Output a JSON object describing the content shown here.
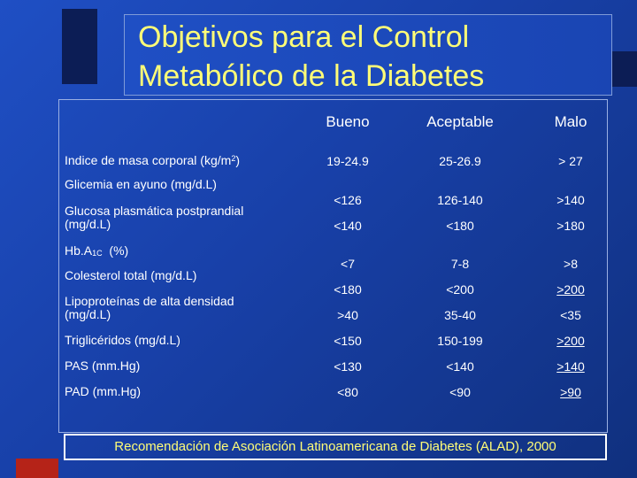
{
  "title": {
    "line1": "Objetivos para el Control",
    "line2": "Metabólico de la Diabetes"
  },
  "table": {
    "columns": [
      "Bueno",
      "Aceptable",
      "Malo"
    ],
    "rows": [
      {
        "label_main": "Indice de masa corporal (kg/m",
        "label_sup": "2",
        "label_tail": ")",
        "bueno": "19-24.9",
        "aceptable": "25-26.9",
        "malo": "> 27"
      },
      {
        "label_main": "Glicemia en ayuno (mg/d.L)",
        "bueno": "<126",
        "aceptable": "126-140",
        "malo": ">140"
      },
      {
        "label_line1": "Glucosa plasmática postprandial",
        "label_line2": "(mg/d.L)",
        "bueno": "<140",
        "aceptable": "<180",
        "malo": ">180"
      },
      {
        "label_main": "Hb.A",
        "label_sub": "1C",
        "label_tail": "  (%)",
        "bueno": "<7",
        "aceptable": "7-8",
        "malo": ">8"
      },
      {
        "label_main": "Colesterol total (mg/d.L)",
        "bueno": "<180",
        "aceptable": "<200",
        "malo": ">200"
      },
      {
        "label_line1": "Lipoproteínas de alta densidad",
        "label_line2": "(mg/d.L)",
        "bueno": ">40",
        "aceptable": "35-40",
        "malo": "<35"
      },
      {
        "label_main": "Triglicéridos (mg/d.L)",
        "bueno": "<150",
        "aceptable": "150-199",
        "malo": ">200"
      },
      {
        "label_main": "PAS (mm.Hg)",
        "bueno": "<130",
        "aceptable": "<140",
        "malo": ">140"
      },
      {
        "label_main": "PAD (mm.Hg)",
        "bueno": "<80",
        "aceptable": "<90",
        "malo": ">90"
      }
    ]
  },
  "footnote": "Recomendación de Asociación Latinoamericana de Diabetes (ALAD), 2000",
  "colors": {
    "title": "#fffd77",
    "text": "#ffffff",
    "background": "#1f4fc4",
    "accent_red": "#b52318"
  }
}
